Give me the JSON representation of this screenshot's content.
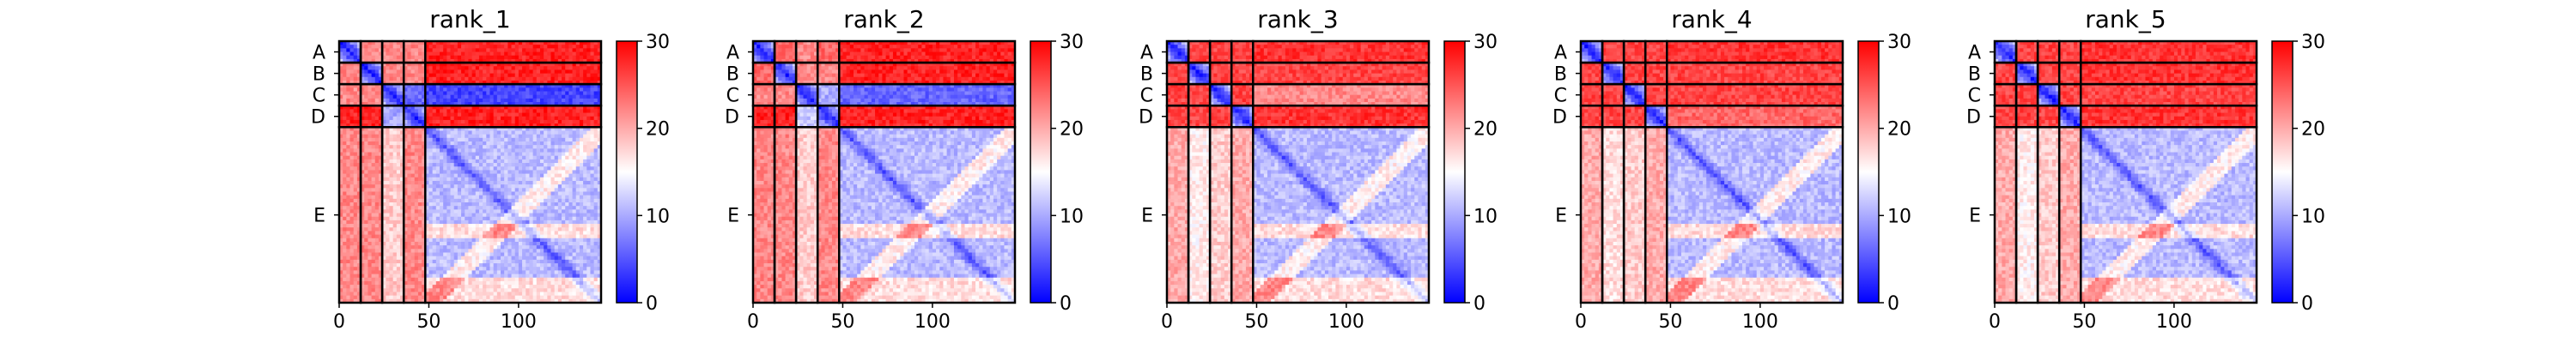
{
  "chart_data": [
    {
      "type": "heatmap",
      "title": "rank_1",
      "row_labels": [
        "A",
        "B",
        "C",
        "D",
        "E"
      ],
      "x_ticks": [
        0,
        50,
        100
      ],
      "xlim": [
        0,
        146
      ],
      "chain_boundaries": [
        12,
        24,
        36,
        48,
        146
      ],
      "colorbar": {
        "min": 0,
        "max": 30,
        "ticks": [
          0,
          10,
          20,
          30
        ],
        "colormap": "bwr"
      },
      "blocks": [
        [
          2,
          22,
          22,
          22,
          28
        ],
        [
          22,
          2,
          22,
          22,
          28
        ],
        [
          22,
          22,
          2,
          6,
          4
        ],
        [
          28,
          28,
          10,
          2,
          28
        ],
        [
          22,
          22,
          18,
          22,
          5
        ]
      ]
    },
    {
      "type": "heatmap",
      "title": "rank_2",
      "row_labels": [
        "A",
        "B",
        "C",
        "D",
        "E"
      ],
      "x_ticks": [
        0,
        50,
        100
      ],
      "xlim": [
        0,
        146
      ],
      "chain_boundaries": [
        12,
        24,
        36,
        48,
        146
      ],
      "colorbar": {
        "min": 0,
        "max": 30,
        "ticks": [
          0,
          10,
          20,
          30
        ],
        "colormap": "bwr"
      },
      "blocks": [
        [
          2,
          24,
          22,
          24,
          28
        ],
        [
          24,
          2,
          22,
          22,
          28
        ],
        [
          22,
          22,
          2,
          10,
          6
        ],
        [
          28,
          28,
          12,
          2,
          28
        ],
        [
          22,
          22,
          18,
          22,
          5
        ]
      ]
    },
    {
      "type": "heatmap",
      "title": "rank_3",
      "row_labels": [
        "A",
        "B",
        "C",
        "D",
        "E"
      ],
      "x_ticks": [
        0,
        50,
        100
      ],
      "xlim": [
        0,
        146
      ],
      "chain_boundaries": [
        12,
        24,
        36,
        48,
        146
      ],
      "colorbar": {
        "min": 0,
        "max": 30,
        "ticks": [
          0,
          10,
          20,
          30
        ],
        "colormap": "bwr"
      },
      "blocks": [
        [
          2,
          26,
          26,
          26,
          27
        ],
        [
          26,
          2,
          26,
          26,
          26
        ],
        [
          26,
          26,
          2,
          26,
          22
        ],
        [
          26,
          26,
          26,
          2,
          27
        ],
        [
          20,
          16,
          18,
          20,
          5
        ]
      ]
    },
    {
      "type": "heatmap",
      "title": "rank_4",
      "row_labels": [
        "A",
        "B",
        "C",
        "D",
        "E"
      ],
      "x_ticks": [
        0,
        50,
        100
      ],
      "xlim": [
        0,
        146
      ],
      "chain_boundaries": [
        12,
        24,
        36,
        48,
        146
      ],
      "colorbar": {
        "min": 0,
        "max": 30,
        "ticks": [
          0,
          10,
          20,
          30
        ],
        "colormap": "bwr"
      },
      "blocks": [
        [
          2,
          26,
          26,
          26,
          27
        ],
        [
          26,
          2,
          26,
          26,
          26
        ],
        [
          26,
          26,
          2,
          26,
          26
        ],
        [
          26,
          26,
          26,
          2,
          24
        ],
        [
          20,
          17,
          18,
          20,
          5
        ]
      ]
    },
    {
      "type": "heatmap",
      "title": "rank_5",
      "row_labels": [
        "A",
        "B",
        "C",
        "D",
        "E"
      ],
      "x_ticks": [
        0,
        50,
        100
      ],
      "xlim": [
        0,
        146
      ],
      "chain_boundaries": [
        12,
        24,
        36,
        48,
        146
      ],
      "colorbar": {
        "min": 0,
        "max": 30,
        "ticks": [
          0,
          10,
          20,
          30
        ],
        "colormap": "bwr"
      },
      "blocks": [
        [
          2,
          26,
          26,
          26,
          27
        ],
        [
          26,
          2,
          26,
          26,
          27
        ],
        [
          26,
          26,
          2,
          26,
          26
        ],
        [
          26,
          26,
          26,
          2,
          27
        ],
        [
          20,
          16,
          18,
          20,
          5
        ]
      ]
    }
  ]
}
